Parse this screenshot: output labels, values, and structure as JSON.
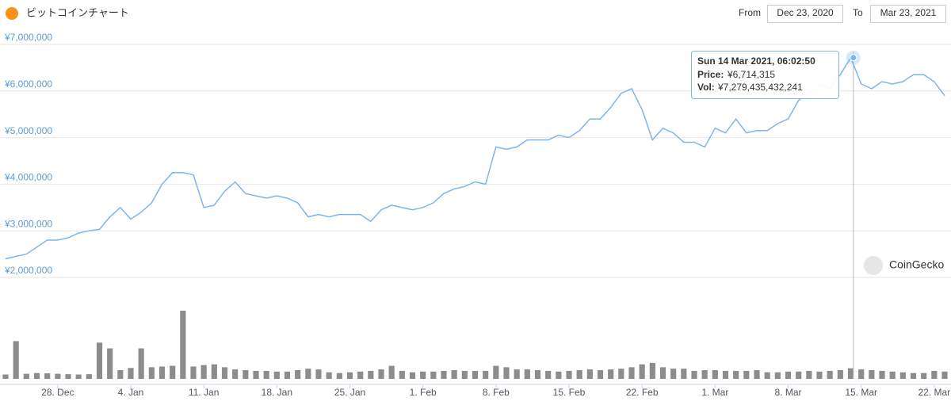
{
  "header": {
    "title": "ビットコインチャート",
    "from_label": "From",
    "from": "Dec 23, 2020",
    "to_label": "To",
    "to": "Mar 23, 2021",
    "watermark": "CoinGecko"
  },
  "chart_data": {
    "type": "line",
    "color": "#7cb5ec",
    "volume_color": "#8c8c8c",
    "grid": true,
    "x": [
      "2020-12-23",
      "2020-12-24",
      "2020-12-25",
      "2020-12-26",
      "2020-12-27",
      "2020-12-28",
      "2020-12-29",
      "2020-12-30",
      "2020-12-31",
      "2021-01-01",
      "2021-01-02",
      "2021-01-03",
      "2021-01-04",
      "2021-01-05",
      "2021-01-06",
      "2021-01-07",
      "2021-01-08",
      "2021-01-09",
      "2021-01-10",
      "2021-01-11",
      "2021-01-12",
      "2021-01-13",
      "2021-01-14",
      "2021-01-15",
      "2021-01-16",
      "2021-01-17",
      "2021-01-18",
      "2021-01-19",
      "2021-01-20",
      "2021-01-21",
      "2021-01-22",
      "2021-01-23",
      "2021-01-24",
      "2021-01-25",
      "2021-01-26",
      "2021-01-27",
      "2021-01-28",
      "2021-01-29",
      "2021-01-30",
      "2021-01-31",
      "2021-02-01",
      "2021-02-02",
      "2021-02-03",
      "2021-02-04",
      "2021-02-05",
      "2021-02-06",
      "2021-02-07",
      "2021-02-08",
      "2021-02-09",
      "2021-02-10",
      "2021-02-11",
      "2021-02-12",
      "2021-02-13",
      "2021-02-14",
      "2021-02-15",
      "2021-02-16",
      "2021-02-17",
      "2021-02-18",
      "2021-02-19",
      "2021-02-20",
      "2021-02-21",
      "2021-02-22",
      "2021-02-23",
      "2021-02-24",
      "2021-02-25",
      "2021-02-26",
      "2021-02-27",
      "2021-02-28",
      "2021-03-01",
      "2021-03-02",
      "2021-03-03",
      "2021-03-04",
      "2021-03-05",
      "2021-03-06",
      "2021-03-07",
      "2021-03-08",
      "2021-03-09",
      "2021-03-10",
      "2021-03-11",
      "2021-03-12",
      "2021-03-13",
      "2021-03-14",
      "2021-03-15",
      "2021-03-16",
      "2021-03-17",
      "2021-03-18",
      "2021-03-19",
      "2021-03-20",
      "2021-03-21",
      "2021-03-22",
      "2021-03-23"
    ],
    "values": [
      2400000,
      2450000,
      2500000,
      2650000,
      2800000,
      2800000,
      2850000,
      2950000,
      3000000,
      3030000,
      3300000,
      3500000,
      3250000,
      3400000,
      3600000,
      4000000,
      4250000,
      4250000,
      4200000,
      3500000,
      3550000,
      3850000,
      4050000,
      3800000,
      3750000,
      3700000,
      3750000,
      3700000,
      3600000,
      3300000,
      3350000,
      3300000,
      3350000,
      3350000,
      3350000,
      3200000,
      3450000,
      3550000,
      3500000,
      3450000,
      3500000,
      3600000,
      3800000,
      3900000,
      3950000,
      4050000,
      4000000,
      4800000,
      4750000,
      4800000,
      4950000,
      4950000,
      4950000,
      5050000,
      5000000,
      5150000,
      5400000,
      5400000,
      5650000,
      5950000,
      6050000,
      5600000,
      4950000,
      5200000,
      5100000,
      4900000,
      4900000,
      4800000,
      5200000,
      5100000,
      5400000,
      5100000,
      5150000,
      5150000,
      5300000,
      5400000,
      5800000,
      5950000,
      6150000,
      6050000,
      6350000,
      6714315,
      6150000,
      6050000,
      6200000,
      6150000,
      6200000,
      6350000,
      6350000,
      6200000,
      5900000
    ],
    "volume": [
      3000000000000.0,
      26000000000000.0,
      3500000000000.0,
      4000000000000.0,
      3800000000000.0,
      3500000000000.0,
      3200000000000.0,
      3000000000000.0,
      3200000000000.0,
      25000000000000.0,
      21000000000000.0,
      6000000000000.0,
      7500000000000.0,
      21000000000000.0,
      8000000000000.0,
      8500000000000.0,
      9000000000000.0,
      47000000000000.0,
      8500000000000.0,
      9500000000000.0,
      10000000000000.0,
      8000000000000.0,
      6500000000000.0,
      6000000000000.0,
      5500000000000.0,
      5500000000000.0,
      5000000000000.0,
      5000000000000.0,
      6000000000000.0,
      7000000000000.0,
      6500000000000.0,
      4500000000000.0,
      4000000000000.0,
      4500000000000.0,
      5000000000000.0,
      5500000000000.0,
      6500000000000.0,
      9000000000000.0,
      5500000000000.0,
      4500000000000.0,
      5000000000000.0,
      5000000000000.0,
      5500000000000.0,
      6000000000000.0,
      5500000000000.0,
      5500000000000.0,
      5500000000000.0,
      9000000000000.0,
      8000000000000.0,
      6500000000000.0,
      6500000000000.0,
      6000000000000.0,
      5500000000000.0,
      5000000000000.0,
      5500000000000.0,
      6000000000000.0,
      6500000000000.0,
      6000000000000.0,
      6500000000000.0,
      7000000000000.0,
      8000000000000.0,
      10000000000000.0,
      11000000000000.0,
      8000000000000.0,
      7000000000000.0,
      7000000000000.0,
      5500000000000.0,
      6000000000000.0,
      6000000000000.0,
      5500000000000.0,
      5500000000000.0,
      5500000000000.0,
      6000000000000.0,
      4500000000000.0,
      4500000000000.0,
      5000000000000.0,
      5000000000000.0,
      5500000000000.0,
      5000000000000.0,
      5500000000000.0,
      6000000000000.0,
      7280000000000.0,
      6500000000000.0,
      6000000000000.0,
      5500000000000.0,
      5000000000000.0,
      4500000000000.0,
      4000000000000.0,
      4000000000000.0,
      5500000000000.0,
      5000000000000.0
    ],
    "xlim": [
      "2020-12-23",
      "2021-03-23"
    ],
    "xticks": [
      {
        "value": "2020-12-28",
        "label": "28. Dec"
      },
      {
        "value": "2021-01-04",
        "label": "4. Jan"
      },
      {
        "value": "2021-01-11",
        "label": "11. Jan"
      },
      {
        "value": "2021-01-18",
        "label": "18. Jan"
      },
      {
        "value": "2021-01-25",
        "label": "25. Jan"
      },
      {
        "value": "2021-02-01",
        "label": "1. Feb"
      },
      {
        "value": "2021-02-08",
        "label": "8. Feb"
      },
      {
        "value": "2021-02-15",
        "label": "15. Feb"
      },
      {
        "value": "2021-02-22",
        "label": "22. Feb"
      },
      {
        "value": "2021-03-01",
        "label": "1. Mar"
      },
      {
        "value": "2021-03-08",
        "label": "8. Mar"
      },
      {
        "value": "2021-03-15",
        "label": "15. Mar"
      },
      {
        "value": "2021-03-22",
        "label": "22. Mar"
      }
    ],
    "ylim": [
      2000000,
      7000000
    ],
    "yticks": [
      {
        "value": 2000000,
        "label": "¥2,000,000"
      },
      {
        "value": 3000000,
        "label": "¥3,000,000"
      },
      {
        "value": 4000000,
        "label": "¥4,000,000"
      },
      {
        "value": 5000000,
        "label": "¥5,000,000"
      },
      {
        "value": 6000000,
        "label": "¥6,000,000"
      },
      {
        "value": 7000000,
        "label": "¥7,000,000"
      }
    ],
    "tooltip": {
      "title": "Sun 14 Mar 2021, 06:02:50",
      "x": "2021-03-14T06:02:50",
      "price_caption": "Price:",
      "price": {
        "value": 6714315,
        "label": "¥6,714,315"
      },
      "volume_caption": "Vol:",
      "volume": {
        "value": 7279435432241,
        "label": "¥7,279,435,432,241"
      }
    }
  }
}
